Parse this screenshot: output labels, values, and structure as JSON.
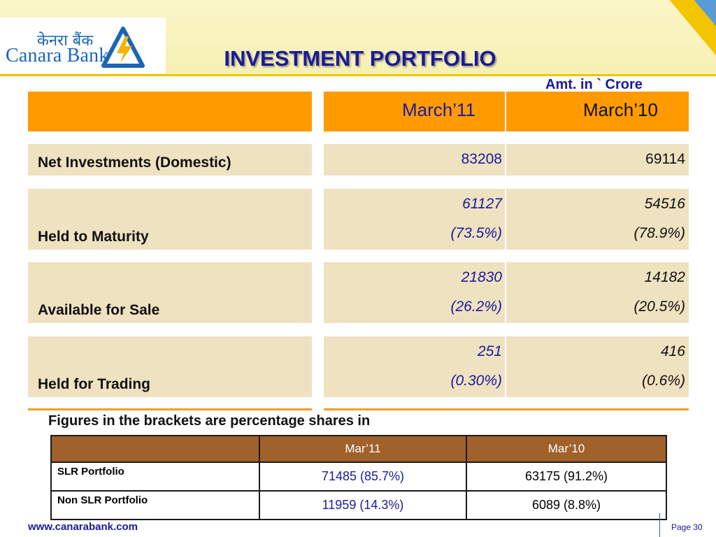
{
  "header": {
    "logo_hindi": "केनरा बैंक",
    "logo_english": "Canara Bank",
    "title": "INVESTMENT PORTFOLIO",
    "amount_note": "Amt. in ` Crore"
  },
  "main_table": {
    "col_headers": [
      "March’11",
      "March’10"
    ],
    "rows": [
      {
        "label": "Net Investments (Domestic)",
        "m11": "83208",
        "m11_pct": "",
        "m10": "69114",
        "m10_pct": ""
      },
      {
        "label": "Held to Maturity",
        "m11": "61127",
        "m11_pct": "(73.5%)",
        "m10": "54516",
        "m10_pct": "(78.9%)"
      },
      {
        "label": "Available for Sale",
        "m11": "21830",
        "m11_pct": "(26.2%)",
        "m10": "14182",
        "m10_pct": "(20.5%)"
      },
      {
        "label": "Held for Trading",
        "m11": "251",
        "m11_pct": "(0.30%)",
        "m10": "416",
        "m10_pct": "(0.6%)"
      }
    ]
  },
  "footnote": "Figures in the brackets are percentage shares in",
  "slr_table": {
    "headers": [
      "",
      "Mar’11",
      "Mar’10"
    ],
    "rows": [
      {
        "label": "SLR Portfolio",
        "m11": "71485 (85.7%)",
        "m10": "63175 (91.2%)"
      },
      {
        "label": "Non SLR Portfolio",
        "m11": "11959 (14.3%)",
        "m10": "6089 (8.8%)"
      }
    ]
  },
  "footer": {
    "url": "www.canarabank.com",
    "page_label": "Page  30"
  },
  "colors": {
    "accent_orange": "#ff9a00",
    "row_beige": "#efe2c1",
    "title_blue": "#1a1a9c",
    "table_brown": "#a0612a"
  }
}
